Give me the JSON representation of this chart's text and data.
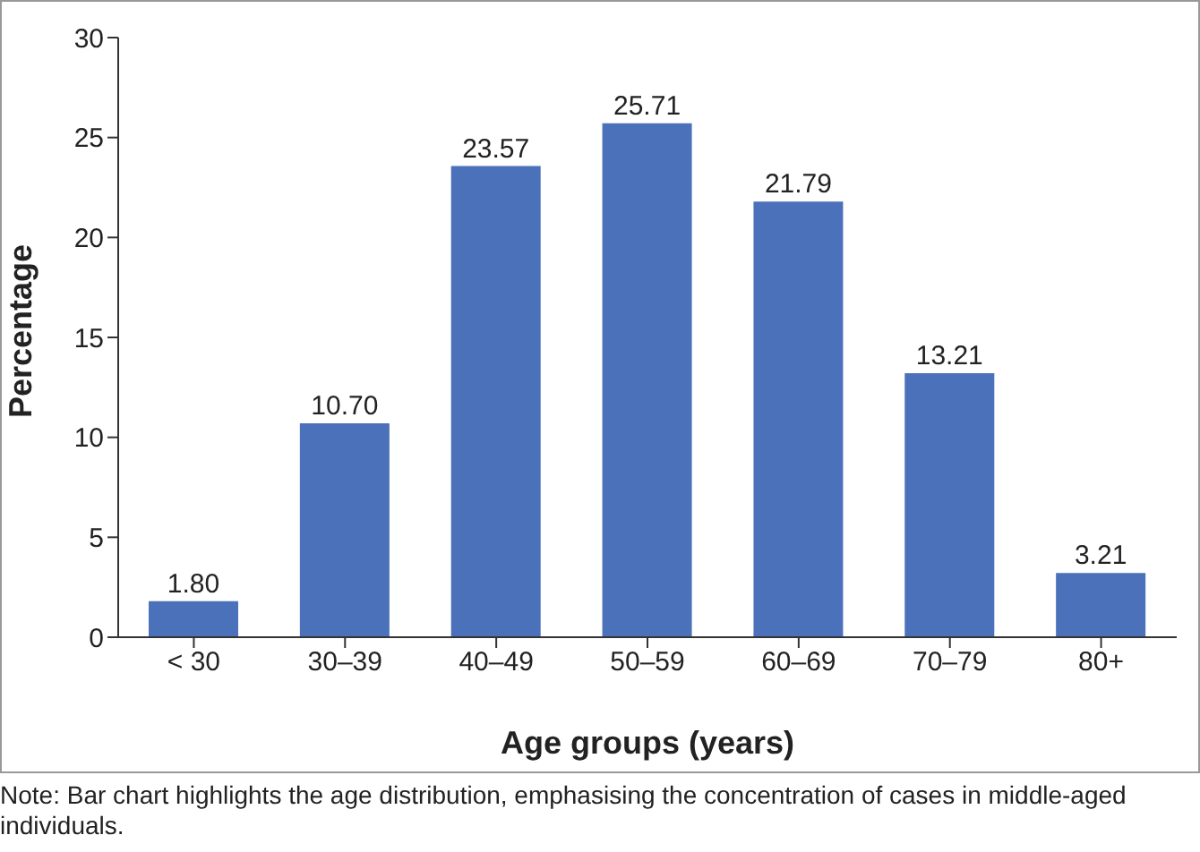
{
  "chart_data": {
    "type": "bar",
    "categories": [
      "< 30",
      "30–39",
      "40–49",
      "50–59",
      "60–69",
      "70–79",
      "80+"
    ],
    "values": [
      1.8,
      10.7,
      23.57,
      25.71,
      21.79,
      13.21,
      3.21
    ],
    "value_labels": [
      "1.80",
      "10.70",
      "23.57",
      "25.71",
      "21.79",
      "13.21",
      "3.21"
    ],
    "color": "#4a71b9",
    "xlabel": "Age groups (years)",
    "ylabel": "Percentage",
    "ylim": [
      0,
      30
    ],
    "yticks": [
      0,
      5,
      10,
      15,
      20,
      25,
      30
    ],
    "annotations": [
      "Note: Bar chart highlights the age distribution, emphasising the concentration of cases in middle-aged individuals."
    ]
  }
}
